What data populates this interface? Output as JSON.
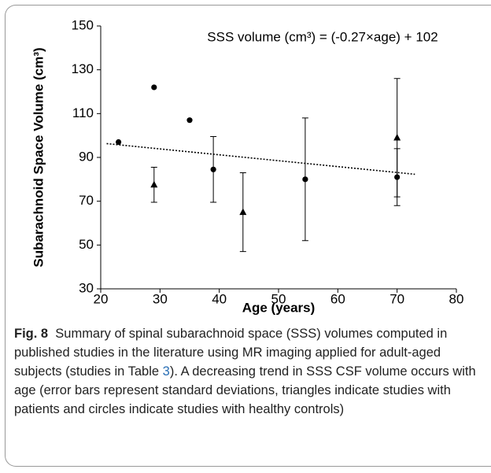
{
  "chart_data": {
    "type": "scatter",
    "annotation": "SSS volume (cm³) = (-0.27×age) + 102",
    "x_label": "Age (years)",
    "y_label": "Subarachnoid Space Volume (cm³)",
    "xlim": [
      20,
      80
    ],
    "xticks": [
      20,
      30,
      40,
      50,
      60,
      70,
      80
    ],
    "ylim": [
      30,
      150
    ],
    "yticks": [
      30,
      50,
      70,
      90,
      110,
      130,
      150
    ],
    "series": [
      {
        "marker": "circle",
        "color": "#000000",
        "x": [
          23,
          29,
          35,
          39,
          54.5,
          70
        ],
        "values": [
          97,
          122,
          107,
          84.5,
          80,
          81
        ],
        "errors": [
          null,
          null,
          null,
          15,
          28,
          13
        ]
      },
      {
        "marker": "triangle",
        "color": "#000000",
        "x": [
          29,
          44,
          70
        ],
        "values": [
          77.5,
          65,
          99
        ],
        "errors": [
          8,
          18,
          27
        ]
      }
    ],
    "trendline": {
      "x": [
        21,
        73
      ],
      "values": [
        96.3,
        82.3
      ],
      "color": "#000000"
    },
    "caption": {
      "label": "Fig. 8",
      "text_before": "Summary of spinal subarachnoid space (SSS) volumes computed in published studies in the literature using MR imaging applied for adult-aged subjects (studies in Table ",
      "ref": "3",
      "text_after": "). A decreasing trend in SSS CSF volume occurs with age (error bars represent standard deviations, triangles indicate studies with patients and circles indicate studies with healthy controls)"
    }
  }
}
